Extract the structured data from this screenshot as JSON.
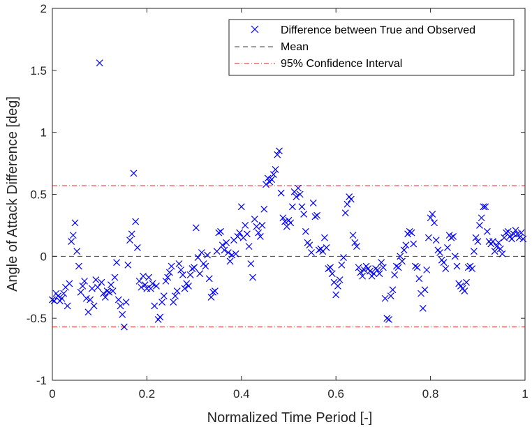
{
  "chart_data": {
    "type": "scatter",
    "title": "",
    "xlabel": "Normalized Time Period [-]",
    "ylabel": "Angle of Attack Difference [deg]",
    "xlim": [
      0,
      1
    ],
    "ylim": [
      -1,
      2
    ],
    "xticks": [
      0,
      0.2,
      0.4,
      0.6,
      0.8,
      1
    ],
    "xtick_labels": [
      "0",
      "0.2",
      "0.4",
      "0.6",
      "0.8",
      "1"
    ],
    "yticks": [
      -1,
      -0.5,
      0,
      0.5,
      1,
      1.5,
      2
    ],
    "ytick_labels": [
      "-1",
      "-0.5",
      "0",
      "0.5",
      "1",
      "1.5",
      "2"
    ],
    "grid": false,
    "legend_position": "top-right",
    "colors": {
      "points": "#0000ff",
      "mean": "#404040",
      "ci": "#d62020"
    },
    "mean": 0,
    "ci": [
      -0.57,
      0.57
    ],
    "legend": [
      {
        "label": "Difference between True and Observed",
        "style": "x-marker"
      },
      {
        "label": "Mean",
        "style": "dashed"
      },
      {
        "label": "95% Confidence Interval",
        "style": "dash-dot"
      }
    ],
    "series": [
      {
        "name": "Difference between True and Observed",
        "points": [
          [
            0.0,
            -0.35
          ],
          [
            0.004,
            -0.36
          ],
          [
            0.008,
            -0.3
          ],
          [
            0.012,
            -0.32
          ],
          [
            0.016,
            -0.36
          ],
          [
            0.02,
            -0.34
          ],
          [
            0.024,
            -0.3
          ],
          [
            0.028,
            -0.25
          ],
          [
            0.032,
            -0.4
          ],
          [
            0.036,
            -0.22
          ],
          [
            0.04,
            0.12
          ],
          [
            0.044,
            0.17
          ],
          [
            0.048,
            0.27
          ],
          [
            0.052,
            0.04
          ],
          [
            0.056,
            -0.08
          ],
          [
            0.06,
            -0.29
          ],
          [
            0.064,
            -0.24
          ],
          [
            0.068,
            -0.2
          ],
          [
            0.072,
            -0.34
          ],
          [
            0.076,
            -0.45
          ],
          [
            0.08,
            -0.35
          ],
          [
            0.084,
            -0.26
          ],
          [
            0.088,
            -0.4
          ],
          [
            0.092,
            -0.19
          ],
          [
            0.096,
            -0.25
          ],
          [
            0.1,
            1.56
          ],
          [
            0.104,
            -0.21
          ],
          [
            0.108,
            -0.3
          ],
          [
            0.112,
            -0.33
          ],
          [
            0.116,
            -0.28
          ],
          [
            0.12,
            -0.29
          ],
          [
            0.124,
            -0.23
          ],
          [
            0.128,
            -0.28
          ],
          [
            0.132,
            -0.17
          ],
          [
            0.136,
            -0.05
          ],
          [
            0.14,
            -0.35
          ],
          [
            0.144,
            -0.4
          ],
          [
            0.148,
            -0.47
          ],
          [
            0.152,
            -0.57
          ],
          [
            0.156,
            -0.37
          ],
          [
            0.16,
            -0.07
          ],
          [
            0.164,
            0.13
          ],
          [
            0.168,
            0.18
          ],
          [
            0.172,
            0.67
          ],
          [
            0.176,
            0.28
          ],
          [
            0.18,
            0.07
          ],
          [
            0.184,
            -0.2
          ],
          [
            0.188,
            -0.25
          ],
          [
            0.192,
            -0.16
          ],
          [
            0.196,
            -0.23
          ],
          [
            0.2,
            -0.26
          ],
          [
            0.204,
            -0.17
          ],
          [
            0.208,
            -0.26
          ],
          [
            0.212,
            -0.22
          ],
          [
            0.216,
            -0.4
          ],
          [
            0.22,
            -0.24
          ],
          [
            0.224,
            -0.51
          ],
          [
            0.228,
            -0.49
          ],
          [
            0.232,
            -0.37
          ],
          [
            0.236,
            -0.32
          ],
          [
            0.24,
            -0.2
          ],
          [
            0.244,
            -0.17
          ],
          [
            0.248,
            -0.13
          ],
          [
            0.252,
            -0.08
          ],
          [
            0.256,
            -0.37
          ],
          [
            0.26,
            -0.32
          ],
          [
            0.264,
            -0.28
          ],
          [
            0.268,
            -0.06
          ],
          [
            0.272,
            -0.11
          ],
          [
            0.276,
            -0.15
          ],
          [
            0.28,
            -0.26
          ],
          [
            0.284,
            -0.22
          ],
          [
            0.288,
            -0.24
          ],
          [
            0.292,
            -0.15
          ],
          [
            0.296,
            -0.1
          ],
          [
            0.3,
            -0.09
          ],
          [
            0.304,
            0.23
          ],
          [
            0.308,
            -0.01
          ],
          [
            0.312,
            -0.14
          ],
          [
            0.316,
            0.03
          ],
          [
            0.32,
            -0.06
          ],
          [
            0.324,
            -0.08
          ],
          [
            0.328,
            0.01
          ],
          [
            0.332,
            -0.18
          ],
          [
            0.336,
            -0.33
          ],
          [
            0.34,
            -0.29
          ],
          [
            0.344,
            -0.28
          ],
          [
            0.348,
            0.04
          ],
          [
            0.352,
            0.19
          ],
          [
            0.356,
            0.2
          ],
          [
            0.36,
            0.09
          ],
          [
            0.364,
            0.05
          ],
          [
            0.368,
            0.11
          ],
          [
            0.372,
            0.03
          ],
          [
            0.376,
            -0.04
          ],
          [
            0.38,
            0.01
          ],
          [
            0.384,
            0.13
          ],
          [
            0.388,
            0.02
          ],
          [
            0.392,
            0.16
          ],
          [
            0.396,
            0.19
          ],
          [
            0.4,
            0.4
          ],
          [
            0.404,
            0.15
          ],
          [
            0.408,
            0.25
          ],
          [
            0.412,
            0.18
          ],
          [
            0.416,
            0.08
          ],
          [
            0.42,
            -0.06
          ],
          [
            0.424,
            -0.17
          ],
          [
            0.428,
            0.3
          ],
          [
            0.432,
            0.24
          ],
          [
            0.436,
            0.19
          ],
          [
            0.44,
            0.16
          ],
          [
            0.444,
            0.25
          ],
          [
            0.448,
            0.38
          ],
          [
            0.452,
            0.58
          ],
          [
            0.456,
            0.63
          ],
          [
            0.46,
            0.6
          ],
          [
            0.464,
            0.62
          ],
          [
            0.468,
            0.66
          ],
          [
            0.472,
            0.7
          ],
          [
            0.476,
            0.82
          ],
          [
            0.48,
            0.85
          ],
          [
            0.484,
            0.51
          ],
          [
            0.488,
            0.31
          ],
          [
            0.492,
            0.28
          ],
          [
            0.496,
            0.24
          ],
          [
            0.5,
            0.29
          ],
          [
            0.504,
            0.27
          ],
          [
            0.508,
            0.4
          ],
          [
            0.512,
            0.52
          ],
          [
            0.516,
            0.48
          ],
          [
            0.52,
            0.55
          ],
          [
            0.524,
            0.5
          ],
          [
            0.528,
            0.4
          ],
          [
            0.532,
            0.34
          ],
          [
            0.536,
            0.2
          ],
          [
            0.54,
            0.11
          ],
          [
            0.544,
            0.09
          ],
          [
            0.548,
            0.03
          ],
          [
            0.552,
            0.43
          ],
          [
            0.556,
            0.32
          ],
          [
            0.56,
            0.33
          ],
          [
            0.564,
            0.05
          ],
          [
            0.568,
            0.06
          ],
          [
            0.572,
            0.04
          ],
          [
            0.576,
            0.15
          ],
          [
            0.58,
            0.07
          ],
          [
            0.584,
            -0.1
          ],
          [
            0.588,
            -0.09
          ],
          [
            0.592,
            -0.14
          ],
          [
            0.596,
            -0.21
          ],
          [
            0.6,
            -0.31
          ],
          [
            0.604,
            -0.24
          ],
          [
            0.608,
            -0.19
          ],
          [
            0.612,
            -0.07
          ],
          [
            0.616,
            -0.01
          ],
          [
            0.62,
            0.35
          ],
          [
            0.624,
            0.42
          ],
          [
            0.628,
            0.48
          ],
          [
            0.632,
            0.46
          ],
          [
            0.636,
            0.17
          ],
          [
            0.64,
            0.11
          ],
          [
            0.644,
            0.08
          ],
          [
            0.648,
            -0.09
          ],
          [
            0.652,
            -0.13
          ],
          [
            0.656,
            -0.16
          ],
          [
            0.66,
            -0.11
          ],
          [
            0.664,
            -0.08
          ],
          [
            0.668,
            -0.1
          ],
          [
            0.672,
            -0.12
          ],
          [
            0.676,
            -0.16
          ],
          [
            0.68,
            -0.14
          ],
          [
            0.684,
            -0.1
          ],
          [
            0.688,
            -0.11
          ],
          [
            0.692,
            -0.14
          ],
          [
            0.696,
            -0.05
          ],
          [
            0.7,
            -0.09
          ],
          [
            0.704,
            -0.34
          ],
          [
            0.708,
            -0.5
          ],
          [
            0.712,
            -0.51
          ],
          [
            0.716,
            -0.32
          ],
          [
            0.72,
            -0.27
          ],
          [
            0.724,
            -0.15
          ],
          [
            0.728,
            -0.08
          ],
          [
            0.732,
            -0.09
          ],
          [
            0.736,
            0.0
          ],
          [
            0.74,
            -0.04
          ],
          [
            0.744,
            0.05
          ],
          [
            0.748,
            0.09
          ],
          [
            0.752,
            0.18
          ],
          [
            0.756,
            0.2
          ],
          [
            0.76,
            0.19
          ],
          [
            0.764,
            0.1
          ],
          [
            0.768,
            -0.08
          ],
          [
            0.772,
            -0.09
          ],
          [
            0.776,
            -0.18
          ],
          [
            0.78,
            -0.3
          ],
          [
            0.784,
            -0.42
          ],
          [
            0.788,
            -0.27
          ],
          [
            0.792,
            -0.11
          ],
          [
            0.796,
            0.15
          ],
          [
            0.8,
            0.31
          ],
          [
            0.804,
            0.34
          ],
          [
            0.808,
            0.27
          ],
          [
            0.812,
            0.13
          ],
          [
            0.816,
            0.05
          ],
          [
            0.82,
            0.03
          ],
          [
            0.824,
            -0.03
          ],
          [
            0.828,
            -0.05
          ],
          [
            0.832,
            -0.1
          ],
          [
            0.836,
            0.07
          ],
          [
            0.84,
            0.17
          ],
          [
            0.844,
            0.15
          ],
          [
            0.848,
            0.16
          ],
          [
            0.852,
            0.0
          ],
          [
            0.856,
            -0.08
          ],
          [
            0.86,
            -0.22
          ],
          [
            0.864,
            -0.24
          ],
          [
            0.868,
            -0.26
          ],
          [
            0.872,
            -0.28
          ],
          [
            0.876,
            -0.21
          ],
          [
            0.88,
            -0.09
          ],
          [
            0.884,
            -0.08
          ],
          [
            0.888,
            -0.1
          ],
          [
            0.892,
            0.04
          ],
          [
            0.896,
            0.15
          ],
          [
            0.9,
            0.12
          ],
          [
            0.904,
            0.25
          ],
          [
            0.908,
            0.31
          ],
          [
            0.912,
            0.4
          ],
          [
            0.916,
            0.4
          ],
          [
            0.92,
            0.2
          ],
          [
            0.924,
            0.12
          ],
          [
            0.928,
            0.1
          ],
          [
            0.932,
            0.12
          ],
          [
            0.936,
            0.04
          ],
          [
            0.94,
            0.08
          ],
          [
            0.944,
            0.11
          ],
          [
            0.948,
            0.06
          ],
          [
            0.952,
            0.02
          ],
          [
            0.956,
            0.15
          ],
          [
            0.96,
            0.19
          ],
          [
            0.964,
            0.2
          ],
          [
            0.968,
            0.16
          ],
          [
            0.972,
            0.14
          ],
          [
            0.976,
            0.18
          ],
          [
            0.98,
            0.21
          ],
          [
            0.984,
            0.18
          ],
          [
            0.988,
            0.15
          ],
          [
            0.992,
            0.19
          ],
          [
            0.996,
            0.14
          ]
        ]
      }
    ]
  }
}
